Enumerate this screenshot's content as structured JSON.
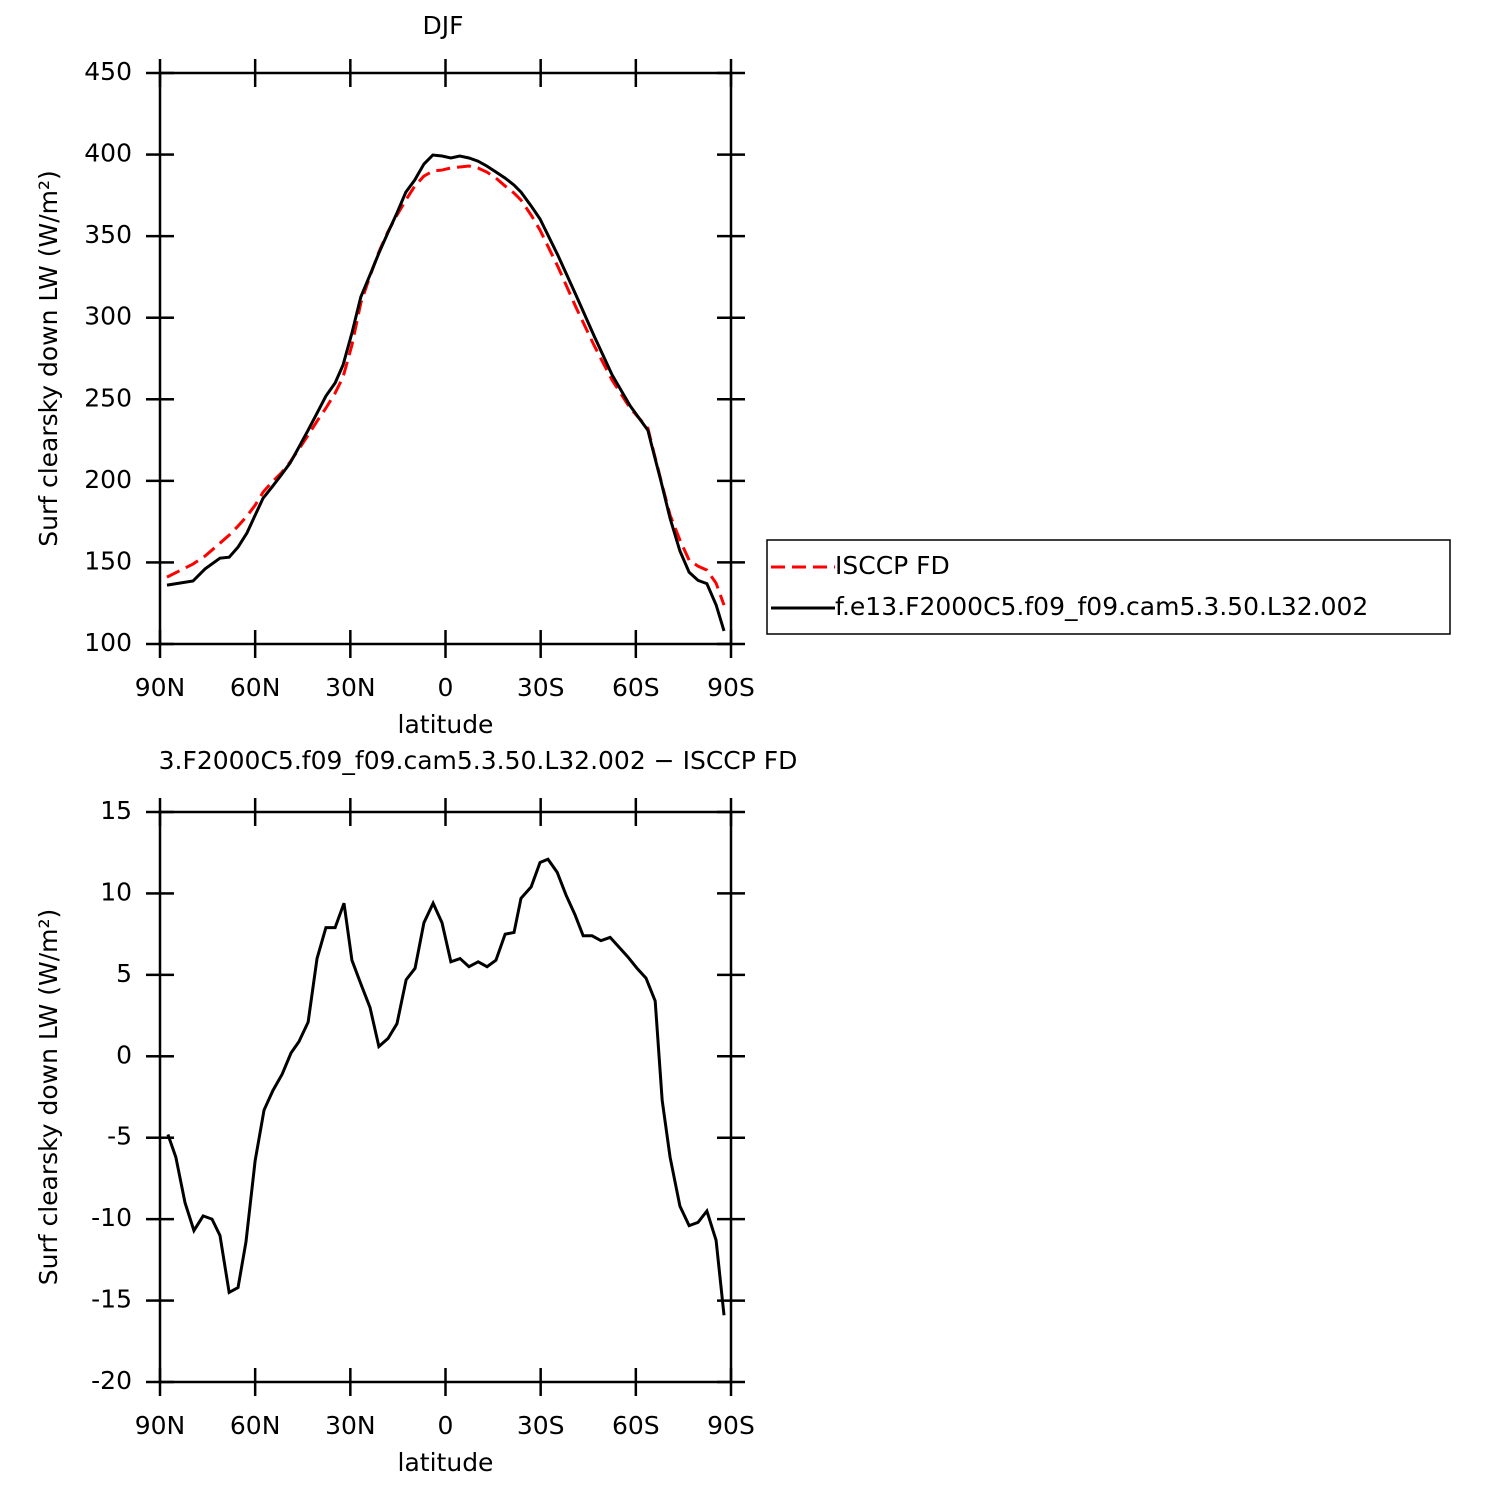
{
  "chart_data": [
    {
      "type": "line",
      "title": "DJF",
      "xlabel": "latitude",
      "ylabel": "Surf clearsky down LW (W/m²)",
      "x": [
        87.8,
        79.6,
        75.8,
        71.1,
        68.2,
        65.4,
        62.6,
        60.0,
        57.5,
        54.7,
        51.8,
        49.0,
        46.2,
        43.3,
        40.5,
        37.7,
        34.8,
        32.3,
        29.5,
        26.7,
        23.8,
        21.0,
        18.2,
        15.3,
        12.5,
        9.7,
        6.8,
        4.0,
        1.1,
        -1.7,
        -4.5,
        -7.4,
        -10.2,
        -13.0,
        -15.9,
        -18.8,
        -21.6,
        -23.8,
        -27.0,
        -29.8,
        -35.5,
        -41.1,
        -46.8,
        -52.5,
        -58.2,
        -63.8,
        -65.1,
        -67.9,
        -70.8,
        -73.9,
        -76.8,
        -79.6,
        -82.4,
        -85.3,
        -87.8
      ],
      "xlim": [
        90,
        -90
      ],
      "xticks": [
        {
          "value": 90,
          "label": "90N"
        },
        {
          "value": 60,
          "label": "60N"
        },
        {
          "value": 30,
          "label": "30N"
        },
        0,
        {
          "value": -30,
          "label": "30S"
        },
        {
          "value": -60,
          "label": "60S"
        },
        {
          "value": -90,
          "label": "90S"
        }
      ],
      "ylim": [
        100,
        450
      ],
      "yticks": [
        100,
        150,
        200,
        250,
        300,
        350,
        400,
        450
      ],
      "legend": "outside-right",
      "series": [
        {
          "name": "ISCCP FD",
          "color": "#ff0000",
          "style": "dashed",
          "values": [
            141,
            149,
            153.9,
            161.8,
            166.7,
            172.3,
            178.4,
            185.1,
            193.1,
            199.2,
            204.8,
            211.5,
            219.5,
            228,
            236.6,
            244.6,
            253.8,
            263.6,
            283.2,
            309,
            325.5,
            340.3,
            352.5,
            362.9,
            372.1,
            380.7,
            386.8,
            389.9,
            390.5,
            391.8,
            392.4,
            393,
            391.8,
            389.3,
            385.6,
            380.7,
            376.4,
            372.1,
            362.9,
            353.7,
            331,
            306.5,
            283.2,
            261.8,
            244.6,
            232.3,
            221.9,
            200.5,
            179,
            163.7,
            151.4,
            147.7,
            145.3,
            137.3,
            123.8
          ]
        },
        {
          "name": "f.e13.F2000C5.f09_f09.cam5.3.50.L32.002",
          "color": "#000000",
          "style": "solid",
          "values": [
            136.1,
            138.6,
            146,
            152.6,
            153.2,
            159.4,
            168,
            179,
            189.4,
            196.2,
            203.5,
            210.9,
            220.7,
            231.1,
            241.5,
            252,
            260,
            271,
            290.6,
            312.7,
            326.2,
            339.6,
            351.9,
            364.2,
            377,
            384.4,
            394.2,
            399.7,
            399.1,
            397.9,
            399.1,
            397.9,
            396,
            393,
            389.3,
            385.6,
            381.3,
            377,
            368.5,
            360.5,
            338,
            314,
            289,
            265,
            246,
            231,
            221,
            200,
            177,
            157,
            144,
            139,
            137,
            124,
            108
          ]
        }
      ]
    },
    {
      "type": "line",
      "title": "3.F2000C5.f09_f09.cam5.3.50.L32.002 − ISCCP FD",
      "xlabel": "latitude",
      "ylabel": "Surf clearsky down LW (W/m²)",
      "x": [
        87.5,
        85.0,
        82.1,
        79.3,
        76.4,
        73.6,
        71.1,
        68.2,
        65.4,
        62.9,
        60.0,
        57.2,
        54.4,
        51.5,
        48.7,
        46.2,
        43.3,
        40.5,
        37.7,
        34.8,
        32.0,
        29.5,
        26.6,
        23.8,
        21.0,
        18.1,
        15.3,
        12.4,
        9.6,
        6.8,
        3.9,
        1.1,
        -1.7,
        -4.6,
        -7.4,
        -10.3,
        -13.1,
        -15.9,
        -18.8,
        -21.6,
        -23.8,
        -27.0,
        -29.8,
        -32.3,
        -35.2,
        -38.0,
        -40.8,
        -43.4,
        -46.2,
        -49.0,
        -51.9,
        -54.7,
        -57.5,
        -60.4,
        -63.2,
        -66.1,
        -68.3,
        -70.8,
        -73.9,
        -76.8,
        -79.6,
        -82.4,
        -85.3,
        -87.8
      ],
      "xlim": [
        90,
        -90
      ],
      "xticks": [
        {
          "value": 90,
          "label": "90N"
        },
        {
          "value": 60,
          "label": "60N"
        },
        {
          "value": 30,
          "label": "30N"
        },
        0,
        {
          "value": -30,
          "label": "30S"
        },
        {
          "value": -60,
          "label": "60S"
        },
        {
          "value": -90,
          "label": "90S"
        }
      ],
      "ylim": [
        -20,
        15
      ],
      "yticks": [
        -20,
        -15,
        -10,
        -5,
        0,
        5,
        10,
        15
      ],
      "color": "#000000",
      "values": [
        -4.8,
        -6.2,
        -9.0,
        -10.7,
        -9.8,
        -10.0,
        -11.0,
        -14.5,
        -14.2,
        -11.4,
        -6.4,
        -3.3,
        -2.1,
        -1.1,
        0.2,
        0.9,
        2.1,
        6.0,
        7.9,
        7.9,
        9.4,
        5.9,
        4.4,
        3.0,
        0.6,
        1.1,
        2.0,
        4.7,
        5.4,
        8.2,
        9.4,
        8.2,
        5.8,
        6.0,
        5.5,
        5.8,
        5.5,
        5.9,
        7.5,
        7.6,
        9.7,
        10.4,
        11.9,
        12.1,
        11.3,
        9.9,
        8.7,
        7.4,
        7.4,
        7.1,
        7.3,
        6.7,
        6.1,
        5.4,
        4.8,
        3.4,
        -2.7,
        -6.2,
        -9.2,
        -10.4,
        -10.2,
        -9.5,
        -11.3,
        -15.9
      ]
    }
  ]
}
